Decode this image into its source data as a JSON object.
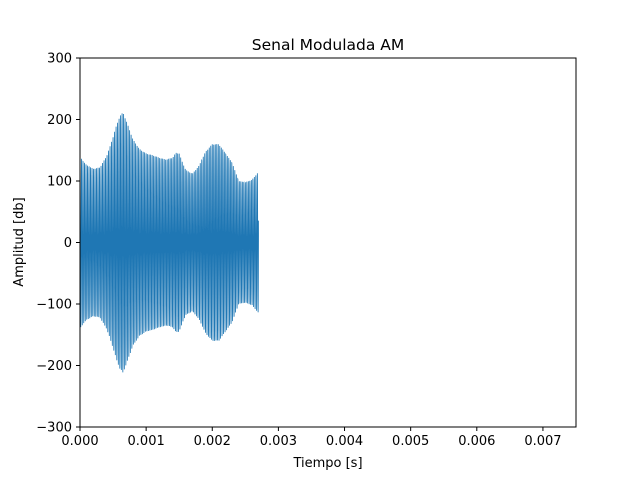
{
  "chart_data": {
    "type": "line",
    "title": "Senal Modulada AM",
    "xlabel": "Tiempo [s]",
    "ylabel": "Amplitud [db]",
    "xlim": [
      0,
      0.0075
    ],
    "ylim": [
      -300,
      300
    ],
    "xticks": [
      0,
      0.001,
      0.002,
      0.003,
      0.004,
      0.005,
      0.006,
      0.007
    ],
    "xtick_labels": [
      "0.000",
      "0.001",
      "0.002",
      "0.003",
      "0.004",
      "0.005",
      "0.006",
      "0.007"
    ],
    "yticks": [
      -300,
      -200,
      -100,
      0,
      100,
      200,
      300
    ],
    "ytick_labels": [
      "−300",
      "−200",
      "−100",
      "0",
      "100",
      "200",
      "300"
    ],
    "grid": false,
    "series": [
      {
        "color": "#1f77b4",
        "x_start": 0,
        "x_end": 0.0027,
        "carrier_frequency_hz": 44000,
        "envelope": {
          "t": [
            0,
            5e-05,
            0.0001,
            0.0002,
            0.0003,
            0.0004,
            0.00045,
            0.0005,
            0.00055,
            0.0006,
            0.00065,
            0.0007,
            0.0008,
            0.0009,
            0.001,
            0.0011,
            0.0012,
            0.0013,
            0.0014,
            0.00145,
            0.0015,
            0.00155,
            0.0016,
            0.0017,
            0.0018,
            0.0019,
            0.002,
            0.0021,
            0.0022,
            0.0023,
            0.0024,
            0.0025,
            0.0026,
            0.0027
          ],
          "amplitude": [
            140,
            132,
            126,
            120,
            122,
            140,
            155,
            172,
            190,
            205,
            212,
            198,
            168,
            152,
            145,
            142,
            138,
            135,
            138,
            146,
            145,
            130,
            118,
            112,
            125,
            148,
            160,
            160,
            145,
            130,
            100,
            98,
            102,
            115
          ]
        }
      }
    ]
  }
}
